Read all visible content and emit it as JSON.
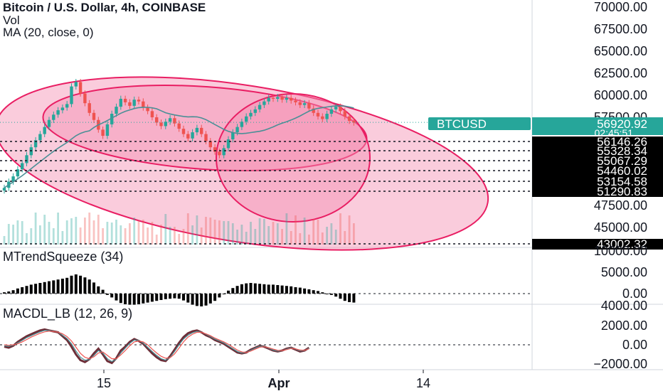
{
  "header": {
    "title": "Bitcoin / U.S. Dollar, 4h, COINBASE",
    "vol_label": "Vol",
    "ma_label": "MA (20, close, 0)"
  },
  "panes": {
    "squeeze_label": "MTrendSqueeze (34)",
    "macd_label": "MACDL_LB (12, 26, 9)"
  },
  "colors": {
    "up": "#26a69a",
    "down": "#ef5350",
    "ma": "#4a8f96",
    "ellipse_fill": "#f48fb1",
    "ellipse_stroke": "#e91e63",
    "price_tag": "#26a69a",
    "axis": "#131722"
  },
  "chart_data": [
    {
      "type": "candlestick",
      "symbol": "BTCUSD",
      "title": "Bitcoin / U.S. Dollar, 4h, COINBASE",
      "y_ticks": [
        70000,
        67500,
        65000,
        62500,
        60000,
        57500,
        47500,
        45000
      ],
      "y_tick_labels": [
        "70000.00",
        "67500.00",
        "65000.00",
        "62500.00",
        "60000.00",
        "57500.00",
        "47500.00",
        "45000.00"
      ],
      "ylim": [
        43000,
        71000
      ],
      "x_ticks": [
        "15",
        "Apr",
        "14"
      ],
      "last_price": 56920.92,
      "last_price_label": "56920.92",
      "countdown": "02:45:51",
      "horizontal_levels": [
        56146.26,
        55328.34,
        55067.29,
        54460.02,
        53154.58,
        51290.83,
        43002.32
      ],
      "horizontal_level_labels": [
        "56146.26",
        "55328.34",
        "55067.29",
        "54460.02",
        "53154.58",
        "51290.83",
        "43002.32"
      ],
      "close_series": [
        49500,
        50200,
        50800,
        51600,
        52300,
        53200,
        54100,
        54900,
        55600,
        56400,
        57200,
        57800,
        58300,
        58600,
        59000,
        61000,
        61500,
        60200,
        59100,
        58000,
        57200,
        56100,
        55400,
        56700,
        57900,
        58700,
        59600,
        59200,
        58800,
        59500,
        59300,
        58600,
        58200,
        57500,
        56900,
        56500,
        57000,
        57400,
        56800,
        56200,
        55600,
        55100,
        55800,
        56300,
        55600,
        54800,
        54100,
        53600,
        53200,
        54000,
        55000,
        55800,
        56400,
        57000,
        57600,
        58000,
        58400,
        58900,
        59300,
        59700,
        59600,
        59800,
        59500,
        59700,
        59400,
        59200,
        58900,
        59100,
        58500,
        58000,
        57600,
        57300,
        57900,
        58400,
        58700,
        58200,
        57600,
        57100,
        56900
      ]
    },
    {
      "type": "histogram",
      "title": "MTrendSqueeze (34)",
      "y_ticks": [
        10000,
        5000,
        0
      ],
      "y_tick_labels": [
        "10000.00",
        "5000.00",
        "0.00"
      ],
      "extra_tick_label": "4000.00",
      "values": [
        300,
        500,
        800,
        1200,
        1500,
        1800,
        2100,
        2300,
        2500,
        2700,
        2900,
        3100,
        3300,
        3500,
        3700,
        4200,
        4500,
        4200,
        3800,
        3300,
        2600,
        1700,
        900,
        -300,
        -900,
        -1600,
        -2200,
        -2500,
        -2600,
        -2600,
        -2500,
        -2300,
        -2100,
        -1900,
        -1700,
        -1500,
        -1300,
        -1200,
        -1100,
        -1200,
        -1600,
        -2100,
        -2600,
        -2900,
        -3000,
        -2800,
        -2300,
        -1700,
        -900,
        -100,
        700,
        1300,
        1800,
        2200,
        2400,
        2500,
        2400,
        2300,
        2200,
        2100,
        2100,
        2000,
        1900,
        1800,
        1700,
        1500,
        1400,
        1200,
        1000,
        800,
        600,
        300,
        0,
        -300,
        -700,
        -1200,
        -1700,
        -2000,
        -2100
      ],
      "zero_line": 0
    },
    {
      "type": "line",
      "title": "MACDL_LB (12, 26, 9)",
      "y_ticks": [
        2000,
        0,
        -2000
      ],
      "y_tick_labels": [
        "2000.00",
        "0.00",
        "−2000.00"
      ],
      "series": [
        {
          "values": [
            -200,
            -300,
            -100,
            300,
            600,
            900,
            1100,
            1300,
            1500,
            1600,
            1500,
            1400,
            1300,
            900,
            500,
            -200,
            -1000,
            -1600,
            -1800,
            -1500,
            -900,
            -400,
            -1000,
            -1700,
            -1900,
            -1400,
            -600,
            -200,
            300,
            600,
            400,
            100,
            -400,
            -900,
            -1300,
            -1600,
            -1700,
            -1200,
            -500,
            200,
            800,
            1200,
            1400,
            1500,
            1300,
            1000,
            800,
            500,
            300,
            100,
            -200,
            -500,
            -800,
            -900,
            -800,
            -500,
            -300,
            -100,
            -200,
            -400,
            -600,
            -700,
            -600,
            -400,
            -300,
            -500,
            -700,
            -600,
            -300
          ]
        },
        {
          "values": [
            -100,
            -150,
            -50,
            200,
            450,
            750,
            950,
            1150,
            1350,
            1500,
            1480,
            1400,
            1320,
            1000,
            650,
            100,
            -650,
            -1300,
            -1600,
            -1550,
            -1100,
            -600,
            -850,
            -1450,
            -1750,
            -1500,
            -850,
            -350,
            150,
            500,
            450,
            200,
            -250,
            -700,
            -1100,
            -1450,
            -1600,
            -1300,
            -700,
            0,
            600,
            1000,
            1250,
            1400,
            1320,
            1100,
            850,
            600,
            400,
            200,
            -100,
            -400,
            -700,
            -850,
            -800,
            -580,
            -350,
            -150,
            -180,
            -350,
            -550,
            -650,
            -620,
            -450,
            -320,
            -450,
            -620,
            -600,
            -350
          ]
        },
        {
          "values": [
            0,
            -50,
            0,
            100,
            300,
            550,
            800,
            1000,
            1200,
            1350,
            1420,
            1380,
            1320,
            1150,
            850,
            400,
            -250,
            -900,
            -1300,
            -1450,
            -1250,
            -850,
            -750,
            -1100,
            -1450,
            -1450,
            -1050,
            -600,
            -100,
            300,
            400,
            300,
            0,
            -450,
            -850,
            -1200,
            -1400,
            -1350,
            -950,
            -350,
            300,
            800,
            1100,
            1300,
            1300,
            1150,
            950,
            700,
            500,
            300,
            50,
            -250,
            -550,
            -750,
            -800,
            -650,
            -450,
            -250,
            -200,
            -300,
            -450,
            -580,
            -600,
            -500,
            -380,
            -420,
            -550,
            -580,
            -420
          ]
        }
      ],
      "zero_line": 0
    }
  ]
}
